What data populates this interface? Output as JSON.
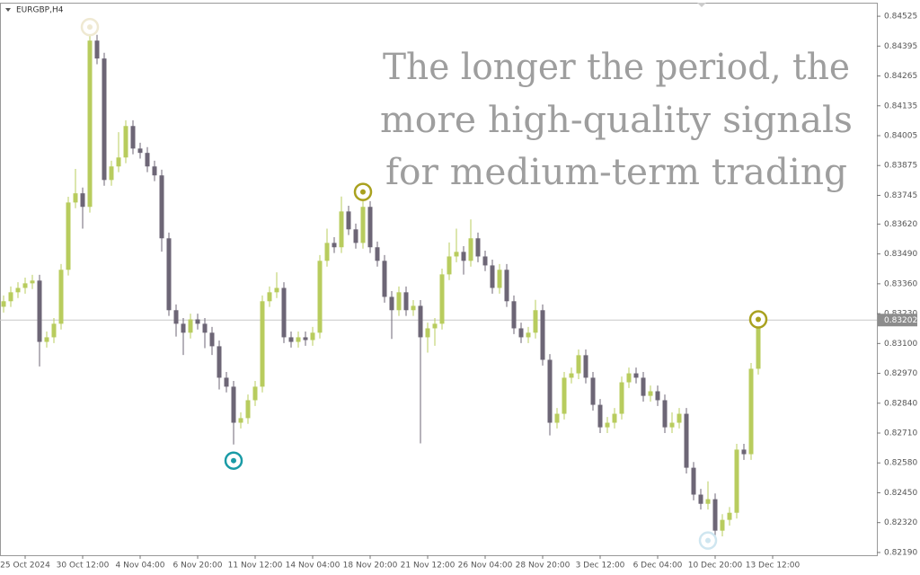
{
  "chart_data": {
    "type": "candlestick",
    "symbol": "EURGBP,H4",
    "overlay_text": [
      "The longer the period, the",
      "more high-quality signals",
      "for medium-term trading"
    ],
    "up_color": "#b8cc5e",
    "down_color": "#6d6676",
    "current_price": 0.83202,
    "ylim": [
      0.82178,
      0.84584
    ],
    "xlim": [
      -0.5,
      121.5
    ],
    "yticks": [
      0.84525,
      0.84395,
      0.84265,
      0.84135,
      {
        "value": 0.84005,
        "label": "0.84005"
      },
      0.83875,
      0.83745,
      {
        "value": 0.8362,
        "label": "0.83620"
      },
      {
        "value": 0.8349,
        "label": "0.83490"
      },
      {
        "value": 0.8336,
        "label": "0.83360"
      },
      {
        "value": 0.8323,
        "label": "0.83230"
      },
      {
        "value": 0.831,
        "label": "0.83100"
      },
      {
        "value": 0.8297,
        "label": "0.82970"
      },
      {
        "value": 0.8284,
        "label": "0.82840"
      },
      {
        "value": 0.8271,
        "label": "0.82710"
      },
      {
        "value": 0.8258,
        "label": "0.82580"
      },
      {
        "value": 0.8245,
        "label": "0.82450"
      },
      {
        "value": 0.8232,
        "label": "0.82320"
      },
      {
        "value": 0.8219,
        "label": "0.82190"
      }
    ],
    "xticks": [
      {
        "value": 3,
        "label": "25 Oct 2024"
      },
      {
        "value": 11,
        "label": "30 Oct 12:00"
      },
      {
        "value": 19,
        "label": "4 Nov 04:00"
      },
      {
        "value": 27,
        "label": "6 Nov 20:00"
      },
      {
        "value": 35,
        "label": "11 Nov 12:00"
      },
      {
        "value": 43,
        "label": "14 Nov 04:00"
      },
      {
        "value": 51,
        "label": "18 Nov 20:00"
      },
      {
        "value": 59,
        "label": "21 Nov 12:00"
      },
      {
        "value": 67,
        "label": "26 Nov 04:00"
      },
      {
        "value": 75,
        "label": "28 Nov 20:00"
      },
      {
        "value": 83,
        "label": "3 Dec 12:00"
      },
      {
        "value": 91,
        "label": "6 Dec 04:00"
      },
      {
        "value": 99,
        "label": "10 Dec 20:00"
      },
      {
        "value": 107,
        "label": "13 Dec 12:00"
      }
    ],
    "ohlc": [
      [
        0.8326,
        0.83309,
        0.83235,
        0.83284
      ],
      [
        0.83284,
        0.83348,
        0.83259,
        0.83323
      ],
      [
        0.83323,
        0.83367,
        0.83298,
        0.83342
      ],
      [
        0.83342,
        0.83387,
        0.83317,
        0.83362
      ],
      [
        0.83362,
        0.83399,
        0.83337,
        0.83374
      ],
      [
        0.83374,
        0.83399,
        0.83,
        0.83107
      ],
      [
        0.83107,
        0.83152,
        0.83082,
        0.83127
      ],
      [
        0.83127,
        0.83211,
        0.83102,
        0.83186
      ],
      [
        0.83186,
        0.83446,
        0.83161,
        0.83421
      ],
      [
        0.83421,
        0.83739,
        0.83396,
        0.83714
      ],
      [
        0.83714,
        0.8386,
        0.83689,
        0.83754
      ],
      [
        0.83754,
        0.83779,
        0.836,
        0.83695
      ],
      [
        0.83695,
        0.84478,
        0.8367,
        0.84419
      ],
      [
        0.84419,
        0.84444,
        0.84316,
        0.84341
      ],
      [
        0.84341,
        0.84366,
        0.83787,
        0.83812
      ],
      [
        0.83812,
        0.83896,
        0.83787,
        0.83871
      ],
      [
        0.83871,
        0.8402,
        0.83846,
        0.8391
      ],
      [
        0.8391,
        0.84072,
        0.83885,
        0.84047
      ],
      [
        0.84047,
        0.84072,
        0.83924,
        0.83949
      ],
      [
        0.83949,
        0.83974,
        0.83905,
        0.8393
      ],
      [
        0.8393,
        0.83955,
        0.83846,
        0.83871
      ],
      [
        0.83871,
        0.83896,
        0.83807,
        0.83832
      ],
      [
        0.83832,
        0.83857,
        0.835,
        0.83558
      ],
      [
        0.83558,
        0.83583,
        0.8322,
        0.83245
      ],
      [
        0.83245,
        0.8327,
        0.8313,
        0.83186
      ],
      [
        0.83186,
        0.83211,
        0.8305,
        0.83147
      ],
      [
        0.83147,
        0.8323,
        0.83122,
        0.83205
      ],
      [
        0.83205,
        0.8323,
        0.83161,
        0.83186
      ],
      [
        0.83186,
        0.83211,
        0.8308,
        0.83147
      ],
      [
        0.83147,
        0.83172,
        0.8305,
        0.83088
      ],
      [
        0.83088,
        0.83113,
        0.829,
        0.82951
      ],
      [
        0.82951,
        0.82976,
        0.82887,
        0.82912
      ],
      [
        0.82912,
        0.82937,
        0.8266,
        0.82755
      ],
      [
        0.82755,
        0.828,
        0.8273,
        0.82775
      ],
      [
        0.82775,
        0.82878,
        0.8275,
        0.82853
      ],
      [
        0.82853,
        0.82937,
        0.82828,
        0.82912
      ],
      [
        0.82912,
        0.83309,
        0.82887,
        0.83284
      ],
      [
        0.83284,
        0.83348,
        0.83259,
        0.83323
      ],
      [
        0.83323,
        0.8341,
        0.83298,
        0.83342
      ],
      [
        0.83342,
        0.83367,
        0.83102,
        0.83127
      ],
      [
        0.83127,
        0.83152,
        0.83082,
        0.83107
      ],
      [
        0.83107,
        0.83152,
        0.83082,
        0.83127
      ],
      [
        0.83127,
        0.83152,
        0.8309,
        0.83115
      ],
      [
        0.83115,
        0.83172,
        0.8309,
        0.83147
      ],
      [
        0.83147,
        0.83485,
        0.83122,
        0.8346
      ],
      [
        0.8346,
        0.836,
        0.83435,
        0.83538
      ],
      [
        0.83538,
        0.83563,
        0.83494,
        0.83519
      ],
      [
        0.83519,
        0.8374,
        0.83494,
        0.83675
      ],
      [
        0.83675,
        0.837,
        0.83572,
        0.83597
      ],
      [
        0.83597,
        0.83622,
        0.83513,
        0.83538
      ],
      [
        0.83538,
        0.8376,
        0.83513,
        0.83695
      ],
      [
        0.83695,
        0.8372,
        0.83494,
        0.83519
      ],
      [
        0.83519,
        0.83544,
        0.83435,
        0.8346
      ],
      [
        0.8346,
        0.83485,
        0.83278,
        0.83303
      ],
      [
        0.83303,
        0.83328,
        0.8312,
        0.83245
      ],
      [
        0.83245,
        0.83348,
        0.8322,
        0.83323
      ],
      [
        0.83323,
        0.83348,
        0.8322,
        0.83245
      ],
      [
        0.83245,
        0.83289,
        0.8322,
        0.83264
      ],
      [
        0.83264,
        0.83289,
        0.82665,
        0.83127
      ],
      [
        0.83127,
        0.83191,
        0.8306,
        0.83166
      ],
      [
        0.83166,
        0.83211,
        0.8309,
        0.83186
      ],
      [
        0.83186,
        0.83426,
        0.83161,
        0.83401
      ],
      [
        0.83401,
        0.8354,
        0.83376,
        0.83479
      ],
      [
        0.83479,
        0.836,
        0.83454,
        0.83499
      ],
      [
        0.83499,
        0.83524,
        0.834,
        0.8346
      ],
      [
        0.8346,
        0.8364,
        0.83435,
        0.83558
      ],
      [
        0.83558,
        0.83583,
        0.83454,
        0.83479
      ],
      [
        0.83479,
        0.83504,
        0.83415,
        0.8344
      ],
      [
        0.8344,
        0.83465,
        0.83317,
        0.83342
      ],
      [
        0.83342,
        0.83446,
        0.83317,
        0.83421
      ],
      [
        0.83421,
        0.83446,
        0.83259,
        0.83284
      ],
      [
        0.83284,
        0.83309,
        0.83141,
        0.83166
      ],
      [
        0.83166,
        0.83191,
        0.83102,
        0.83127
      ],
      [
        0.83127,
        0.83172,
        0.83102,
        0.83147
      ],
      [
        0.83147,
        0.8329,
        0.83122,
        0.83245
      ],
      [
        0.83245,
        0.8327,
        0.83004,
        0.83029
      ],
      [
        0.83029,
        0.83054,
        0.827,
        0.82755
      ],
      [
        0.82755,
        0.82819,
        0.8273,
        0.82794
      ],
      [
        0.82794,
        0.82976,
        0.82769,
        0.82951
      ],
      [
        0.82951,
        0.82995,
        0.82926,
        0.8297
      ],
      [
        0.8297,
        0.83074,
        0.82945,
        0.83049
      ],
      [
        0.83049,
        0.83074,
        0.82926,
        0.82951
      ],
      [
        0.82951,
        0.82976,
        0.82808,
        0.82833
      ],
      [
        0.82833,
        0.82858,
        0.8271,
        0.82735
      ],
      [
        0.82735,
        0.8278,
        0.8271,
        0.82755
      ],
      [
        0.82755,
        0.82819,
        0.8273,
        0.82794
      ],
      [
        0.82794,
        0.82956,
        0.82769,
        0.82931
      ],
      [
        0.82931,
        0.82995,
        0.82906,
        0.8297
      ],
      [
        0.8297,
        0.82995,
        0.82926,
        0.82951
      ],
      [
        0.82951,
        0.82976,
        0.82847,
        0.82872
      ],
      [
        0.82872,
        0.82917,
        0.82847,
        0.82892
      ],
      [
        0.82892,
        0.82917,
        0.82828,
        0.82853
      ],
      [
        0.82853,
        0.82878,
        0.8271,
        0.82735
      ],
      [
        0.82735,
        0.828,
        0.8271,
        0.82755
      ],
      [
        0.82755,
        0.82819,
        0.8273,
        0.82794
      ],
      [
        0.82794,
        0.82819,
        0.82534,
        0.82559
      ],
      [
        0.82559,
        0.82584,
        0.82417,
        0.82442
      ],
      [
        0.82442,
        0.82467,
        0.82377,
        0.82402
      ],
      [
        0.82402,
        0.825,
        0.82377,
        0.82422
      ],
      [
        0.82422,
        0.82447,
        0.8225,
        0.82285
      ],
      [
        0.82285,
        0.82357,
        0.8226,
        0.82332
      ],
      [
        0.82332,
        0.82388,
        0.82307,
        0.82363
      ],
      [
        0.82363,
        0.82663,
        0.82338,
        0.82638
      ],
      [
        0.82638,
        0.82663,
        0.82593,
        0.82618
      ],
      [
        0.82618,
        0.83015,
        0.82593,
        0.8299
      ],
      [
        0.8299,
        0.83227,
        0.82965,
        0.83202
      ]
    ],
    "signals": [
      {
        "candle": 12,
        "price": 0.84478,
        "color": "#efe9d2"
      },
      {
        "candle": 50,
        "price": 0.8376,
        "color": "#a9a11f"
      },
      {
        "candle": 32,
        "price": 0.8259,
        "color": "#1a9ba6"
      },
      {
        "candle": 105,
        "price": 0.83205,
        "color": "#a9a11f"
      },
      {
        "candle": 98,
        "price": 0.82242,
        "color": "#cfe6f0"
      }
    ]
  }
}
